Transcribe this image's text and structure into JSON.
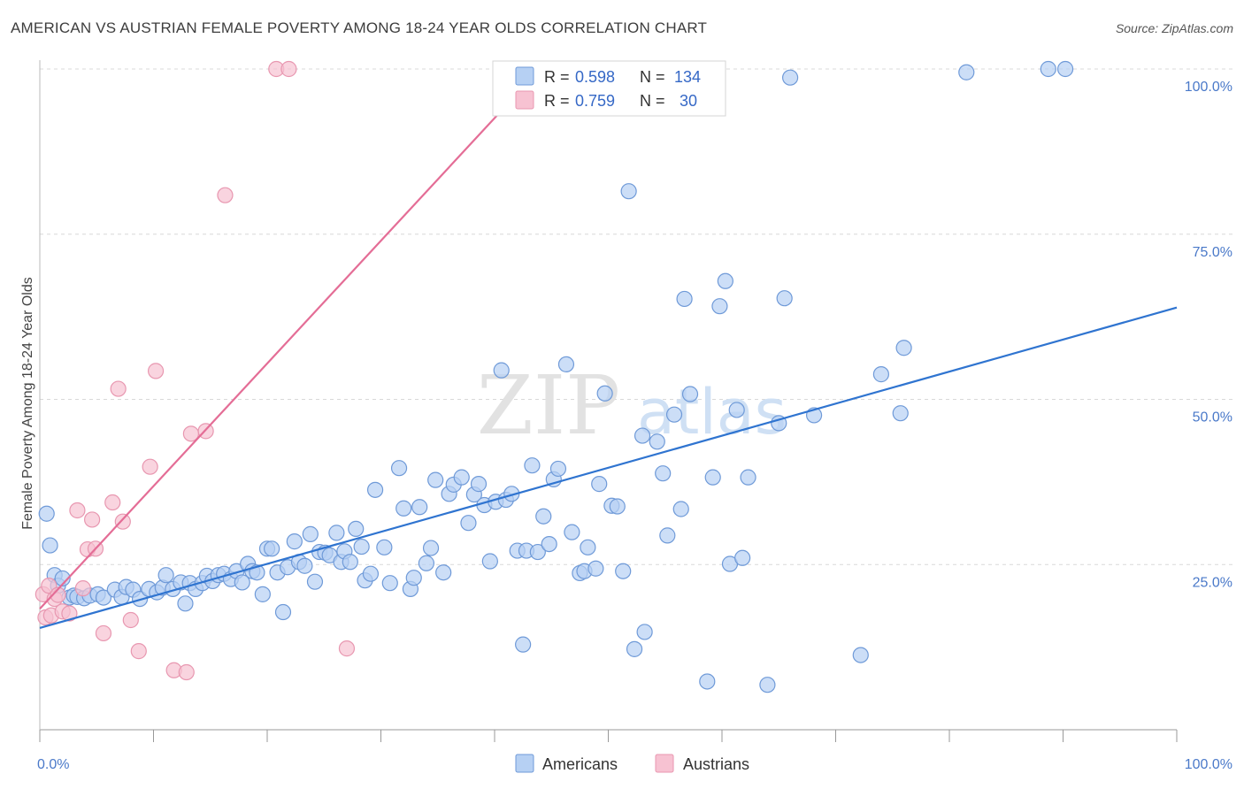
{
  "title": "AMERICAN VS AUSTRIAN FEMALE POVERTY AMONG 18-24 YEAR OLDS CORRELATION CHART",
  "source": "Source: ZipAtlas.com",
  "watermark": {
    "zip": "ZIP",
    "atlas": "atlas"
  },
  "colors": {
    "americans_fill": "#b6d0f3",
    "americans_stroke": "#6f9ad8",
    "americans_line": "#2f74d0",
    "austrians_fill": "#f7c2d2",
    "austrians_stroke": "#e897b0",
    "austrians_line": "#e46d96",
    "tick_label": "#4a79c9",
    "grid": "#d8d8d8"
  },
  "legend": {
    "r_label": "R =",
    "n_label": "N =",
    "rows": [
      {
        "r": "0.598",
        "n": "134"
      },
      {
        "r": "0.759",
        "n": "30"
      }
    ]
  },
  "chart_data": {
    "type": "scatter",
    "title": "AMERICAN VS AUSTRIAN FEMALE POVERTY AMONG 18-24 YEAR OLDS CORRELATION CHART",
    "xlabel": "",
    "ylabel": "Female Poverty Among 18-24 Year Olds",
    "xlim": [
      0,
      100
    ],
    "ylim": [
      0,
      100
    ],
    "x_tick_labels": [
      "0.0%",
      "100.0%"
    ],
    "y_tick_values": [
      25,
      50,
      75,
      100
    ],
    "y_tick_labels": [
      "25.0%",
      "50.0%",
      "75.0%",
      "100.0%"
    ],
    "grid": true,
    "legend_position": "top-center",
    "series": [
      {
        "name": "Americans",
        "r": 0.598,
        "n": 134,
        "trend": {
          "x": [
            0,
            100
          ],
          "y": [
            15.4,
            63.9
          ]
        },
        "points": [
          [
            0.6,
            32.7
          ],
          [
            0.9,
            27.9
          ],
          [
            1.3,
            23.4
          ],
          [
            1.6,
            21.8
          ],
          [
            2.0,
            22.9
          ],
          [
            2.6,
            20.0
          ],
          [
            3.0,
            20.3
          ],
          [
            3.3,
            20.1
          ],
          [
            3.9,
            19.9
          ],
          [
            4.4,
            20.3
          ],
          [
            5.1,
            20.5
          ],
          [
            5.6,
            20.0
          ],
          [
            6.6,
            21.2
          ],
          [
            7.2,
            20.1
          ],
          [
            7.6,
            21.6
          ],
          [
            8.2,
            21.2
          ],
          [
            8.8,
            19.8
          ],
          [
            9.6,
            21.3
          ],
          [
            10.3,
            20.8
          ],
          [
            10.8,
            21.5
          ],
          [
            11.1,
            23.4
          ],
          [
            11.7,
            21.3
          ],
          [
            12.4,
            22.3
          ],
          [
            12.8,
            19.1
          ],
          [
            13.2,
            22.2
          ],
          [
            13.7,
            21.3
          ],
          [
            14.3,
            22.2
          ],
          [
            14.7,
            23.3
          ],
          [
            15.2,
            22.5
          ],
          [
            15.7,
            23.4
          ],
          [
            16.2,
            23.6
          ],
          [
            16.8,
            22.8
          ],
          [
            17.3,
            24.0
          ],
          [
            17.8,
            22.3
          ],
          [
            18.3,
            25.1
          ],
          [
            18.7,
            24.0
          ],
          [
            19.1,
            23.8
          ],
          [
            19.6,
            20.5
          ],
          [
            20.0,
            27.4
          ],
          [
            20.4,
            27.4
          ],
          [
            20.9,
            23.8
          ],
          [
            21.4,
            17.8
          ],
          [
            21.8,
            24.6
          ],
          [
            22.4,
            28.5
          ],
          [
            22.8,
            25.4
          ],
          [
            23.3,
            24.8
          ],
          [
            23.8,
            29.6
          ],
          [
            24.2,
            22.4
          ],
          [
            24.6,
            26.9
          ],
          [
            25.1,
            26.8
          ],
          [
            25.5,
            26.4
          ],
          [
            26.1,
            29.8
          ],
          [
            26.5,
            25.4
          ],
          [
            26.8,
            27.0
          ],
          [
            27.3,
            25.4
          ],
          [
            27.8,
            30.4
          ],
          [
            28.3,
            27.7
          ],
          [
            28.6,
            22.6
          ],
          [
            29.1,
            23.6
          ],
          [
            29.5,
            36.3
          ],
          [
            30.3,
            27.6
          ],
          [
            30.8,
            22.2
          ],
          [
            31.6,
            39.6
          ],
          [
            32.0,
            33.5
          ],
          [
            32.6,
            21.3
          ],
          [
            32.9,
            23.0
          ],
          [
            33.4,
            33.7
          ],
          [
            34.0,
            25.2
          ],
          [
            34.4,
            27.5
          ],
          [
            34.8,
            37.8
          ],
          [
            35.5,
            23.8
          ],
          [
            36.0,
            35.7
          ],
          [
            36.4,
            37.1
          ],
          [
            37.1,
            38.2
          ],
          [
            37.7,
            31.3
          ],
          [
            38.2,
            35.6
          ],
          [
            38.6,
            37.2
          ],
          [
            39.1,
            34.0
          ],
          [
            39.6,
            25.5
          ],
          [
            40.1,
            34.5
          ],
          [
            40.6,
            54.4
          ],
          [
            41.0,
            34.8
          ],
          [
            41.5,
            35.7
          ],
          [
            42.0,
            27.1
          ],
          [
            42.5,
            12.9
          ],
          [
            42.8,
            27.1
          ],
          [
            43.3,
            40.0
          ],
          [
            43.8,
            26.9
          ],
          [
            44.3,
            32.3
          ],
          [
            44.8,
            28.1
          ],
          [
            45.2,
            37.9
          ],
          [
            45.6,
            39.5
          ],
          [
            46.3,
            55.3
          ],
          [
            46.8,
            29.9
          ],
          [
            47.5,
            23.7
          ],
          [
            47.9,
            24.0
          ],
          [
            48.2,
            27.6
          ],
          [
            48.9,
            24.4
          ],
          [
            49.2,
            37.2
          ],
          [
            49.7,
            50.9
          ],
          [
            50.3,
            33.9
          ],
          [
            50.8,
            33.8
          ],
          [
            51.3,
            24.0
          ],
          [
            51.8,
            81.5
          ],
          [
            52.3,
            12.2
          ],
          [
            53.0,
            44.5
          ],
          [
            53.2,
            14.8
          ],
          [
            54.3,
            43.6
          ],
          [
            54.8,
            38.8
          ],
          [
            55.2,
            29.4
          ],
          [
            55.8,
            47.7
          ],
          [
            56.4,
            33.4
          ],
          [
            56.7,
            65.2
          ],
          [
            57.2,
            50.8
          ],
          [
            58.7,
            7.3
          ],
          [
            59.2,
            38.2
          ],
          [
            59.8,
            64.1
          ],
          [
            60.3,
            67.9
          ],
          [
            60.7,
            25.1
          ],
          [
            61.3,
            48.4
          ],
          [
            61.8,
            26.0
          ],
          [
            62.3,
            38.2
          ],
          [
            64.0,
            6.8
          ],
          [
            65.0,
            46.4
          ],
          [
            65.5,
            65.3
          ],
          [
            66.0,
            98.7
          ],
          [
            68.1,
            47.6
          ],
          [
            72.2,
            11.3
          ],
          [
            74.0,
            53.8
          ],
          [
            75.7,
            47.9
          ],
          [
            76.0,
            57.8
          ],
          [
            88.7,
            100
          ],
          [
            81.5,
            99.5
          ],
          [
            90.2,
            100
          ]
        ]
      },
      {
        "name": "Austrians",
        "r": 0.759,
        "n": 30,
        "trend": {
          "x": [
            0,
            44.0
          ],
          "y": [
            18.3,
            100
          ]
        },
        "points": [
          [
            0.3,
            20.5
          ],
          [
            0.5,
            17.0
          ],
          [
            0.8,
            21.8
          ],
          [
            1.0,
            17.3
          ],
          [
            1.3,
            19.8
          ],
          [
            1.6,
            20.4
          ],
          [
            2.0,
            17.9
          ],
          [
            2.6,
            17.6
          ],
          [
            3.3,
            33.2
          ],
          [
            3.8,
            21.4
          ],
          [
            4.2,
            27.3
          ],
          [
            4.6,
            31.8
          ],
          [
            4.9,
            27.4
          ],
          [
            5.6,
            14.6
          ],
          [
            6.4,
            34.4
          ],
          [
            6.9,
            51.6
          ],
          [
            7.3,
            31.5
          ],
          [
            8.0,
            16.6
          ],
          [
            8.7,
            11.9
          ],
          [
            9.7,
            39.8
          ],
          [
            10.2,
            54.3
          ],
          [
            11.8,
            9.0
          ],
          [
            12.9,
            8.7
          ],
          [
            13.3,
            44.8
          ],
          [
            14.6,
            45.2
          ],
          [
            16.3,
            80.9
          ],
          [
            20.8,
            100
          ],
          [
            21.9,
            100
          ],
          [
            27.0,
            12.3
          ],
          [
            40.6,
            100
          ]
        ]
      }
    ]
  }
}
